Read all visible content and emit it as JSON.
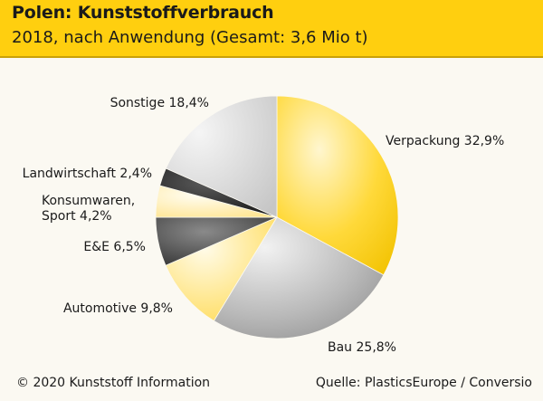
{
  "header": {
    "title": "Polen: Kunststoffverbrauch",
    "subtitle": "2018, nach Anwendung (Gesamt: 3,6 Mio t)"
  },
  "footer": {
    "copyright": "© 2020 Kunststoff Information",
    "source": "Quelle: PlasticsEurope / Conversio"
  },
  "chart_data": {
    "type": "pie",
    "title": "Polen: Kunststoffverbrauch",
    "subtitle": "2018, nach Anwendung (Gesamt: 3,6 Mio t)",
    "start": "12 o'clock, clockwise",
    "slices": [
      {
        "label": "Verpackung",
        "value": 32.9,
        "text": "Verpackung 32,9%",
        "color": "#ffd21a"
      },
      {
        "label": "Bau",
        "value": 25.8,
        "text": "Bau 25,8%",
        "color": "#9a9a9a"
      },
      {
        "label": "Automotive",
        "value": 9.8,
        "text": "Automotive 9,8%",
        "color": "#ffd84a"
      },
      {
        "label": "E&E",
        "value": 6.5,
        "text": "E&E 6,5%",
        "color": "#4a4a4a"
      },
      {
        "label": "Konsumwaren, Sport",
        "value": 4.2,
        "text_lines": [
          "Konsumwaren,",
          "Sport 4,2%"
        ],
        "color": "#ffe9a0"
      },
      {
        "label": "Landwirtschaft",
        "value": 2.4,
        "text": "Landwirtschaft 2,4%",
        "color": "#1e1e1e"
      },
      {
        "label": "Sonstige",
        "value": 18.4,
        "text": "Sonstige 18,4%",
        "color": "#c8c8c8"
      }
    ]
  }
}
